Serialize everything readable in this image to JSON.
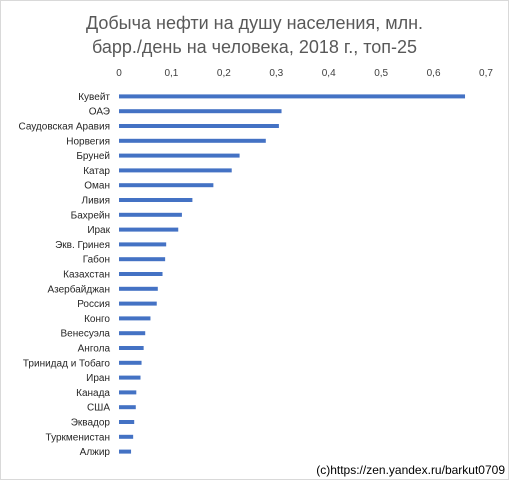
{
  "chart_data": {
    "type": "bar",
    "orientation": "horizontal",
    "title_line_1": "Добыча нефти на душу населения, млн.",
    "title_line_2": "барр./день на человека, 2018 г., топ-25",
    "xlim": [
      0,
      0.7
    ],
    "x_ticks": [
      "0",
      "0,1",
      "0,2",
      "0,3",
      "0,4",
      "0,5",
      "0,6",
      "0,7"
    ],
    "x_axis_position": "top",
    "grid": false,
    "categories": [
      "Кувейт",
      "ОАЭ",
      "Саудовская Аравия",
      "Норвегия",
      "Бруней",
      "Катар",
      "Оман",
      "Ливия",
      "Бахрейн",
      "Ирак",
      "Экв. Гринея",
      "Габон",
      "Казахстан",
      "Азербайджан",
      "Россия",
      "Конго",
      "Венесуэла",
      "Ангола",
      "Тринидад и Тобаго",
      "Иран",
      "Канада",
      "США",
      "Эквадор",
      "Туркменистан",
      "Алжир"
    ],
    "values": [
      0.66,
      0.31,
      0.305,
      0.28,
      0.23,
      0.215,
      0.18,
      0.14,
      0.12,
      0.113,
      0.09,
      0.088,
      0.083,
      0.074,
      0.072,
      0.06,
      0.05,
      0.047,
      0.043,
      0.041,
      0.033,
      0.032,
      0.029,
      0.027,
      0.023
    ],
    "bar_color": "#4472c4"
  },
  "credit": "(c)https://zen.yandex.ru/barkut0709"
}
